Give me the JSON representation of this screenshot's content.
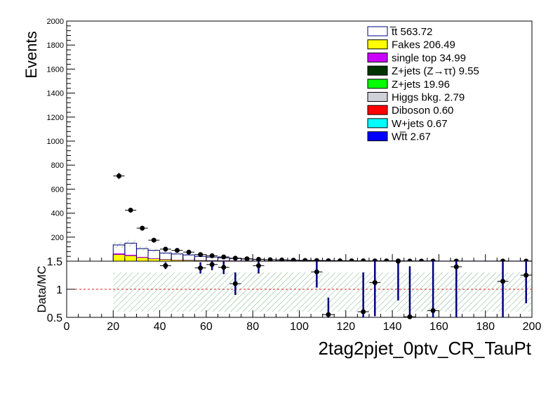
{
  "chart_data": [
    {
      "type": "histogram-stack",
      "ylabel": "Events",
      "xlabel": "2tag2pjet_0ptv_CR_TauPt",
      "xlim": [
        0,
        200
      ],
      "ylim": [
        0,
        2000
      ],
      "y_ticks": [
        "200",
        "400",
        "600",
        "800",
        "1000",
        "1200",
        "1400",
        "1600",
        "1800",
        "2000"
      ],
      "bin_edges": [
        20,
        25,
        30,
        35,
        40,
        45,
        50,
        55,
        60,
        65,
        70,
        75,
        80,
        85,
        90,
        95,
        100,
        105,
        110,
        115,
        120,
        125,
        130,
        135,
        140,
        145,
        150,
        155,
        160,
        165,
        170,
        175,
        180,
        185,
        190,
        195,
        200
      ],
      "legend": [
        {
          "label": "t̅t 563.72",
          "color": "#ffffff",
          "border": "#000080"
        },
        {
          "label": "Fakes 206.49",
          "color": "#ffff00",
          "border": "#000000"
        },
        {
          "label": "single top 34.99",
          "color": "#cc00ff",
          "border": "#000000"
        },
        {
          "label": "Z+jets (Z→ττ) 9.55",
          "color": "#003300",
          "border": "#000000"
        },
        {
          "label": "Z+jets 19.96",
          "color": "#00ff00",
          "border": "#000000"
        },
        {
          "label": "Higgs bkg. 2.79",
          "color": "#d0d0d8",
          "border": "#000000"
        },
        {
          "label": "Diboson 0.60",
          "color": "#ff0000",
          "border": "#000000"
        },
        {
          "label": "W+jets 0.67",
          "color": "#00ffff",
          "border": "#000000"
        },
        {
          "label": "Wt̅t 2.67",
          "color": "#0000ff",
          "border": "#000000"
        }
      ],
      "stack_total": [
        135,
        150,
        105,
        90,
        68,
        60,
        52,
        40,
        34,
        28,
        22,
        18,
        14,
        12,
        10,
        8,
        7,
        6,
        5,
        4,
        4,
        3,
        3,
        3,
        2,
        2,
        2,
        2,
        1,
        1,
        1,
        1,
        1,
        1,
        1,
        1
      ],
      "fakes": [
        55,
        45,
        30,
        20,
        14,
        10,
        8,
        6,
        5,
        4,
        3,
        3,
        2,
        2,
        2,
        1,
        1,
        1,
        1,
        1,
        1,
        1,
        1,
        1,
        1,
        1,
        1,
        1,
        0,
        0,
        0,
        0,
        0,
        0,
        0,
        0
      ],
      "data": {
        "x": [
          22.5,
          27.5,
          32.5,
          37.5,
          42.5,
          47.5,
          52.5,
          57.5,
          62.5,
          67.5,
          72.5,
          77.5,
          82.5,
          87.5,
          92.5,
          97.5,
          102.5,
          107.5,
          112.5,
          117.5,
          122.5,
          127.5,
          132.5,
          137.5,
          142.5,
          147.5,
          152.5,
          157.5,
          167.5,
          187.5,
          197.5
        ],
        "y": [
          710,
          425,
          275,
          175,
          100,
          90,
          75,
          55,
          45,
          35,
          25,
          20,
          15,
          12,
          10,
          8,
          6,
          5,
          4,
          3,
          3,
          3,
          2,
          2,
          2,
          1,
          1,
          1,
          1,
          1,
          1
        ]
      }
    },
    {
      "type": "ratio",
      "ylabel": "Data/MC",
      "xlim": [
        0,
        200
      ],
      "ylim": [
        0.5,
        1.5
      ],
      "y_ticks": [
        "0.5",
        "1",
        "1.5"
      ],
      "x_ticks": [
        "0",
        "20",
        "40",
        "60",
        "80",
        "100",
        "120",
        "140",
        "160",
        "180",
        "200"
      ],
      "points": [
        {
          "x": 42.5,
          "y": 1.42,
          "err": 0.06
        },
        {
          "x": 57.5,
          "y": 1.38,
          "err": 0.1
        },
        {
          "x": 62.5,
          "y": 1.44,
          "err": 0.1
        },
        {
          "x": 67.5,
          "y": 1.39,
          "err": 0.12
        },
        {
          "x": 72.5,
          "y": 1.1,
          "err": 0.2
        },
        {
          "x": 82.5,
          "y": 1.42,
          "err": 0.14
        },
        {
          "x": 107.5,
          "y": 1.31,
          "err": 0.28
        },
        {
          "x": 112.5,
          "y": 0.55,
          "err": 0.3
        },
        {
          "x": 127.5,
          "y": 0.6,
          "err": 0.7
        },
        {
          "x": 132.5,
          "y": 1.12,
          "err": 0.6
        },
        {
          "x": 142.5,
          "y": 1.5,
          "err": 0.7
        },
        {
          "x": 147.5,
          "y": 0.51,
          "err": 0.9
        },
        {
          "x": 157.5,
          "y": 0.62,
          "err": 0.9
        },
        {
          "x": 167.5,
          "y": 1.4,
          "err": 0.9
        },
        {
          "x": 187.5,
          "y": 1.14,
          "err": 0.9
        },
        {
          "x": 197.5,
          "y": 1.25,
          "err": 0.5
        }
      ],
      "reference_line": 1,
      "band_low": 0.6,
      "band_high": 1.3
    }
  ]
}
